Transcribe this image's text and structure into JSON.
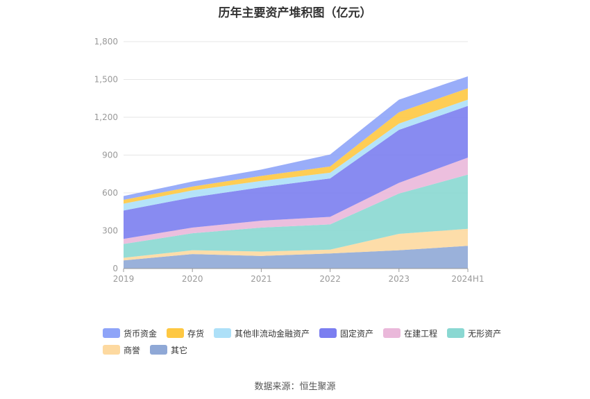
{
  "title": "历年主要资产堆积图（亿元）",
  "source": "数据来源：恒生聚源",
  "chart_data": {
    "type": "area",
    "stacked": true,
    "title": "历年主要资产堆积图（亿元）",
    "categories": [
      "2019",
      "2020",
      "2021",
      "2022",
      "2023",
      "2024H1"
    ],
    "ylim": [
      0,
      1800
    ],
    "yticks": [
      0,
      300,
      600,
      900,
      1200,
      1500,
      1800
    ],
    "ytick_labels": [
      "0",
      "300",
      "600",
      "900",
      "1,200",
      "1,500",
      "1,800"
    ],
    "grid": true,
    "legend_position": "bottom",
    "series": [
      {
        "name": "其它",
        "color": "#8fa8d6",
        "values": [
          65,
          115,
          100,
          120,
          145,
          180
        ]
      },
      {
        "name": "商誉",
        "color": "#fdd9a0",
        "values": [
          20,
          30,
          35,
          30,
          130,
          135
        ]
      },
      {
        "name": "无形资产",
        "color": "#8ad8d2",
        "values": [
          110,
          135,
          190,
          200,
          320,
          430
        ]
      },
      {
        "name": "在建工程",
        "color": "#eab8da",
        "values": [
          40,
          45,
          55,
          60,
          85,
          135
        ]
      },
      {
        "name": "固定资产",
        "color": "#7b7ef0",
        "values": [
          225,
          240,
          265,
          305,
          420,
          410
        ]
      },
      {
        "name": "其他非流动金融资产",
        "color": "#ade0f8",
        "values": [
          55,
          55,
          50,
          45,
          50,
          50
        ]
      },
      {
        "name": "存货",
        "color": "#fec842",
        "values": [
          30,
          30,
          40,
          50,
          90,
          90
        ]
      },
      {
        "name": "货币资金",
        "color": "#8ea4f8",
        "values": [
          30,
          40,
          50,
          95,
          100,
          95
        ]
      }
    ],
    "legend_order": [
      "货币资金",
      "存货",
      "其他非流动金融资产",
      "固定资产",
      "在建工程",
      "无形资产",
      "商誉",
      "其它"
    ]
  }
}
